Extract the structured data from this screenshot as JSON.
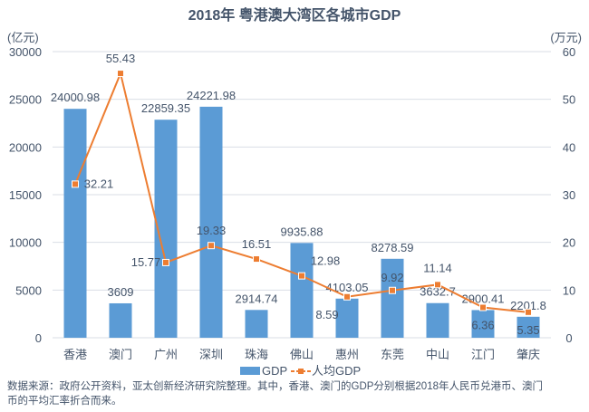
{
  "chart_data": {
    "type": "bar+line",
    "title": "2018年 粤港澳大湾区各城市GDP",
    "categories": [
      "香港",
      "澳门",
      "广州",
      "深圳",
      "珠海",
      "佛山",
      "惠州",
      "东莞",
      "中山",
      "江门",
      "肇庆"
    ],
    "series": [
      {
        "name": "GDP",
        "type": "bar",
        "axis": "left",
        "color": "#5b9bd5",
        "values": [
          24000.98,
          3609,
          22859.35,
          24221.98,
          2914.74,
          9935.88,
          4103.05,
          8278.59,
          3632.7,
          2900.41,
          2201.8
        ],
        "labels": [
          "24000.98",
          "3609",
          "22859.35",
          "24221.98",
          "2914.74",
          "9935.88",
          "4103.05",
          "8278.59",
          "3632.7",
          "2900.41",
          "2201.8"
        ]
      },
      {
        "name": "人均GDP",
        "type": "line",
        "axis": "right",
        "color": "#ed7d31",
        "values": [
          32.21,
          55.43,
          15.77,
          19.33,
          16.51,
          12.98,
          8.59,
          9.92,
          11.14,
          6.36,
          5.35
        ],
        "labels": [
          "32.21",
          "55.43",
          "15.77",
          "19.33",
          "16.51",
          "12.98",
          "8.59",
          "9.92",
          "11.14",
          "6.36",
          "5.35"
        ]
      }
    ],
    "y_left": {
      "unit": "(亿元)",
      "range": [
        0,
        30000
      ],
      "ticks": [
        "0",
        "5000",
        "10000",
        "15000",
        "20000",
        "25000",
        "30000"
      ]
    },
    "y_right": {
      "unit": "(万元)",
      "range": [
        0,
        60
      ],
      "ticks": [
        "0",
        "10",
        "20",
        "30",
        "40",
        "50",
        "60"
      ]
    },
    "grid": true,
    "legend": {
      "placement": "bottom",
      "items": [
        "GDP",
        "人均GDP"
      ]
    }
  },
  "footnote": {
    "line1": "数据来源：政府公开资料，亚太创新经济研究院整理。其中，香港、澳门的GDP分别根据2018年人民币兑港币、澳门",
    "line2": "币的平均汇率折合而来。"
  }
}
